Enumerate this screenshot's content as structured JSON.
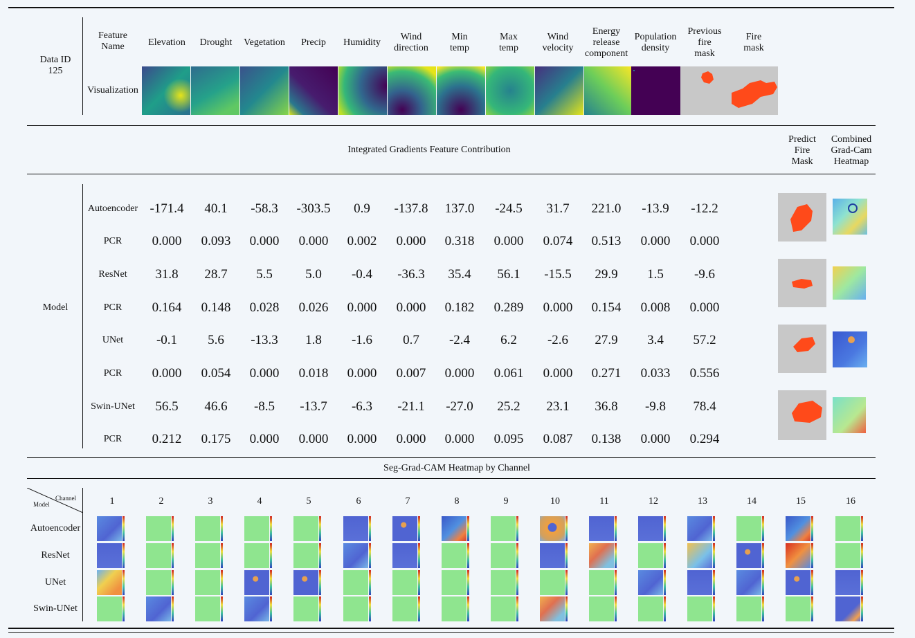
{
  "data_id": "Data ID\n125",
  "feature_header": "Feature\nName",
  "visualization_label": "Visualization",
  "features": [
    "Elevation",
    "Drought",
    "Vegetation",
    "Precip",
    "Humidity",
    "Wind\ndirection",
    "Min\ntemp",
    "Max\ntemp",
    "Wind\nvelocity",
    "Energy\nrelease\ncomponent",
    "Population\ndensity",
    "Previous\nfire\nmask",
    "Fire\nmask"
  ],
  "ig_title": "Integrated Gradients Feature Contribution",
  "predict_header": "Predict\nFire\nMask",
  "combined_header": "Combined\nGrad-Cam\nHeatmap",
  "model_label": "Model",
  "rows": [
    {
      "name": "Autoencoder",
      "values": [
        "-171.4",
        "40.1",
        "-58.3",
        "-303.5",
        "0.9",
        "-137.8",
        "137.0",
        "-24.5",
        "31.7",
        "221.0",
        "-13.9",
        "-12.2"
      ]
    },
    {
      "name": "PCR",
      "values": [
        "0.000",
        "0.093",
        "0.000",
        "0.000",
        "0.002",
        "0.000",
        "0.318",
        "0.000",
        "0.074",
        "0.513",
        "0.000",
        "0.000"
      ]
    },
    {
      "name": "ResNet",
      "values": [
        "31.8",
        "28.7",
        "5.5",
        "5.0",
        "-0.4",
        "-36.3",
        "35.4",
        "56.1",
        "-15.5",
        "29.9",
        "1.5",
        "-9.6"
      ]
    },
    {
      "name": "PCR",
      "values": [
        "0.164",
        "0.148",
        "0.028",
        "0.026",
        "0.000",
        "0.000",
        "0.182",
        "0.289",
        "0.000",
        "0.154",
        "0.008",
        "0.000"
      ]
    },
    {
      "name": "UNet",
      "values": [
        "-0.1",
        "5.6",
        "-13.3",
        "1.8",
        "-1.6",
        "0.7",
        "-2.4",
        "6.2",
        "-2.6",
        "27.9",
        "3.4",
        "57.2"
      ]
    },
    {
      "name": "PCR",
      "values": [
        "0.000",
        "0.054",
        "0.000",
        "0.018",
        "0.000",
        "0.007",
        "0.000",
        "0.061",
        "0.000",
        "0.271",
        "0.033",
        "0.556"
      ]
    },
    {
      "name": "Swin-UNet",
      "values": [
        "56.5",
        "46.6",
        "-8.5",
        "-13.7",
        "-6.3",
        "-21.1",
        "-27.0",
        "25.2",
        "23.1",
        "36.8",
        "-9.8",
        "78.4"
      ]
    },
    {
      "name": "PCR",
      "values": [
        "0.212",
        "0.175",
        "0.000",
        "0.000",
        "0.000",
        "0.000",
        "0.000",
        "0.095",
        "0.087",
        "0.138",
        "0.000",
        "0.294"
      ]
    }
  ],
  "seg_title": "Seg-Grad-CAM Heatmap by Channel",
  "channel_corner": {
    "channel": "Channel",
    "model": "Model"
  },
  "channels": [
    "1",
    "2",
    "3",
    "4",
    "5",
    "6",
    "7",
    "8",
    "9",
    "10",
    "11",
    "12",
    "13",
    "14",
    "15",
    "16"
  ],
  "seg_models": [
    "Autoencoder",
    "ResNet",
    "UNet",
    "Swin-UNet"
  ],
  "seg_cells": [
    [
      "blue-mix",
      "green",
      "green",
      "green",
      "green",
      "blue",
      "blue-spot",
      "blue-orange",
      "green",
      "orange-blob",
      "blue",
      "blue",
      "blue-mix",
      "green",
      "blue-orange",
      "green"
    ],
    [
      "blue",
      "green",
      "green",
      "green",
      "green",
      "blue-mix",
      "blue",
      "green",
      "green",
      "blue",
      "orange-mix",
      "green",
      "yellow-mix",
      "blue-spot",
      "red-orange",
      "green"
    ],
    [
      "yellow-orange",
      "green",
      "green",
      "blue-spot",
      "blue-spot",
      "green",
      "green",
      "green",
      "green",
      "green",
      "green",
      "blue-mix",
      "blue",
      "blue-mix",
      "blue-spot",
      "blue"
    ],
    [
      "green",
      "blue-mix",
      "green",
      "blue-mix",
      "green",
      "green",
      "green",
      "green",
      "green",
      "orange-mix",
      "green",
      "green",
      "green",
      "green",
      "green",
      "blue-corner"
    ]
  ],
  "colors": {
    "fire": "#ff4a1a",
    "background": "#f2f6fa",
    "gray": "#c8c8c8",
    "jet_green": "#8fe58f",
    "jet_blue": "#5064d2"
  }
}
